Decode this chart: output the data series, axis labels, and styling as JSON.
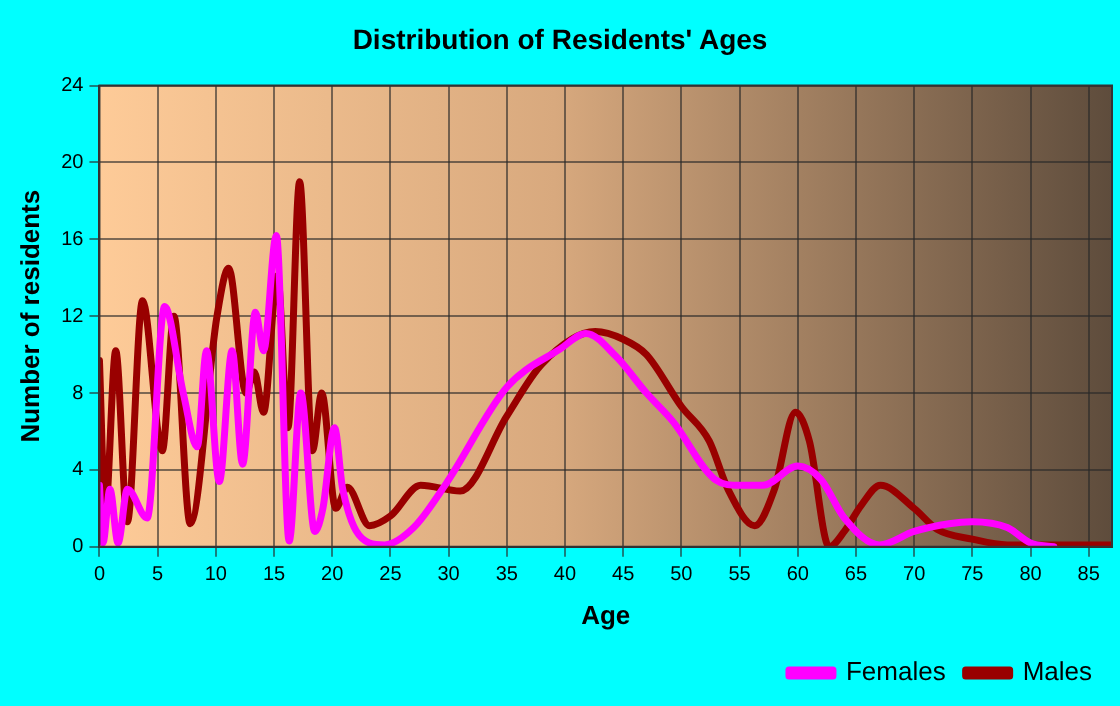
{
  "chart_data": {
    "type": "line",
    "title": "Distribution of Residents' Ages",
    "xlabel": "Age",
    "ylabel": "Number of residents",
    "xlim": [
      0,
      87
    ],
    "xticks": [
      0,
      5,
      10,
      15,
      20,
      25,
      30,
      35,
      40,
      45,
      50,
      55,
      60,
      65,
      70,
      75,
      80,
      85
    ],
    "ylim": [
      0,
      24
    ],
    "yticks": [
      0,
      4,
      8,
      12,
      16,
      20,
      24
    ],
    "grid": true,
    "legend": "bottom right",
    "marker": "none",
    "line_style": "solid",
    "series": [
      {
        "name": "Males",
        "color": "#990000",
        "x": [
          0,
          0.5,
          1.4,
          2.4,
          3.7,
          5.4,
          6.4,
          7.8,
          10.1,
          11.1,
          12.6,
          13.3,
          14.1,
          15.3,
          16.2,
          17.2,
          18.3,
          19.1,
          20.3,
          21.3,
          23.2,
          25,
          27.6,
          31,
          35,
          38,
          42.6,
          45,
          47,
          50,
          52.4,
          54,
          56.3,
          58,
          59.8,
          61,
          62.7,
          64,
          65.5,
          67.1,
          70,
          72,
          75,
          78,
          80,
          83,
          87
        ],
        "values": [
          9.7,
          1.8,
          10.2,
          1.3,
          12.8,
          5,
          12,
          1.2,
          12,
          14.5,
          8,
          9.1,
          7,
          14.1,
          6.2,
          19,
          5,
          8,
          2,
          3.1,
          1.1,
          1.6,
          3.2,
          2.9,
          6.8,
          9.5,
          11.2,
          10.8,
          10,
          7.3,
          5.5,
          3,
          1.1,
          3,
          7,
          5.5,
          0,
          0.8,
          2.2,
          3.2,
          2,
          0.9,
          0.4,
          0.1,
          0.1,
          0.1,
          0.1
        ]
      },
      {
        "name": "Females",
        "color": "#ff00ff",
        "x": [
          0,
          0.3,
          0.9,
          1.6,
          2.4,
          4.1,
          5.6,
          7.2,
          8.4,
          9.2,
          10.3,
          11.4,
          12.3,
          13.4,
          14.1,
          15.2,
          16.3,
          17.3,
          18.5,
          19.2,
          20.2,
          20.9,
          23.2,
          24.5,
          27,
          29.8,
          35,
          39.6,
          41.8,
          44.4,
          47,
          49.3,
          52.9,
          55,
          57,
          60,
          62,
          64,
          67,
          70,
          73,
          75,
          78,
          80,
          82
        ],
        "values": [
          3.2,
          0.2,
          3,
          0.2,
          3,
          1.5,
          12.5,
          8,
          5.2,
          10.2,
          3.4,
          10.2,
          4.3,
          12.2,
          10.2,
          16.2,
          0.3,
          8,
          0.8,
          2,
          6.2,
          3,
          0.2,
          0.1,
          1,
          3.3,
          8.3,
          10.3,
          11.1,
          9.9,
          8,
          6.5,
          3.5,
          3.2,
          3.2,
          4.2,
          3.5,
          1.5,
          0.1,
          0.8,
          1.2,
          1.3,
          1,
          0.2,
          0
        ]
      }
    ]
  }
}
